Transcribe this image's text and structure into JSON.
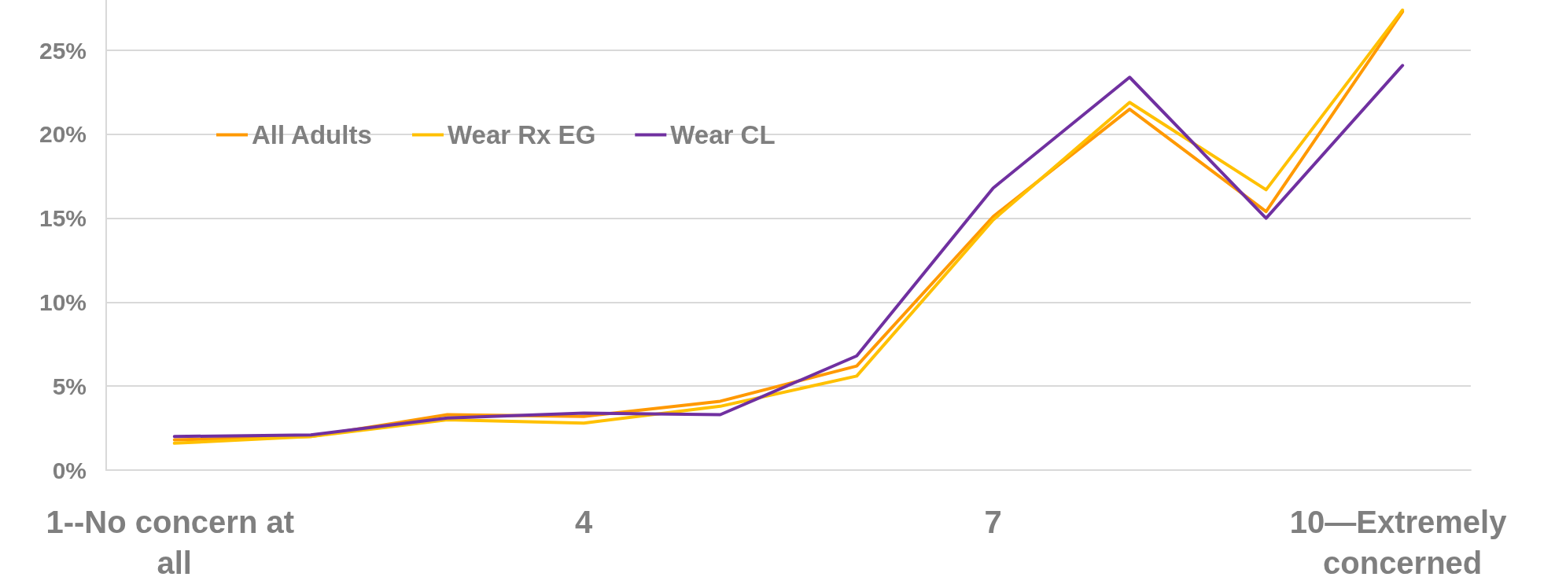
{
  "chart_data": {
    "type": "line",
    "categories": [
      "1--No concern at all",
      null,
      null,
      "4",
      null,
      null,
      "7",
      null,
      null,
      "10—Extremely concerned"
    ],
    "series": [
      {
        "name": "All Adults",
        "color": "#ff9900",
        "values": [
          1.8,
          2.0,
          3.3,
          3.2,
          4.1,
          6.2,
          15.1,
          21.5,
          15.4,
          27.3
        ]
      },
      {
        "name": "Wear Rx EG",
        "color": "#ffc000",
        "values": [
          1.6,
          2.0,
          3.0,
          2.8,
          3.8,
          5.6,
          14.9,
          21.9,
          16.7,
          27.4
        ]
      },
      {
        "name": "Wear CL",
        "color": "#7030a0",
        "values": [
          2.0,
          2.1,
          3.1,
          3.4,
          3.3,
          6.8,
          16.8,
          23.4,
          15.0,
          24.1
        ]
      }
    ],
    "ylim": [
      0,
      28
    ],
    "yticks": [
      {
        "value": 0,
        "label": "0%"
      },
      {
        "value": 5,
        "label": "5%"
      },
      {
        "value": 10,
        "label": "10%"
      },
      {
        "value": 15,
        "label": "15%"
      },
      {
        "value": 20,
        "label": "20%"
      },
      {
        "value": 25,
        "label": "25%"
      }
    ],
    "grid": "y",
    "legend": "top left",
    "marker": "none",
    "line_style": "solid"
  }
}
